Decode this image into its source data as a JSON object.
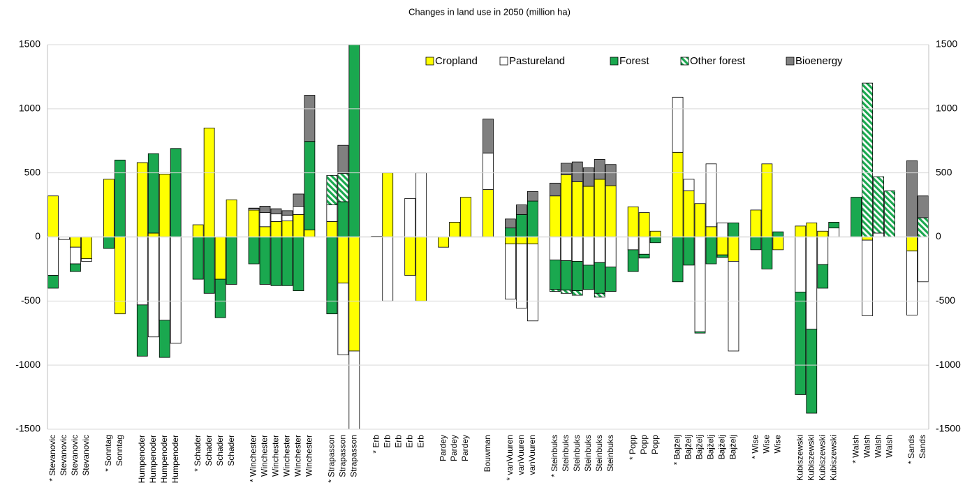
{
  "chart_data": {
    "type": "stacked-bar",
    "title": "Changes in land use in 2050 (million ha)",
    "categories": [
      "* Stevanovic",
      "Stevanovic",
      "Stevanovic",
      "Stevanovic",
      null,
      "* Sonntag",
      "Sonntag",
      null,
      "Humpenoder",
      "Humpenoder",
      "Humpenoder",
      "Humpenoder",
      null,
      "* Schader",
      "Schader",
      "Schader",
      "Schader",
      null,
      "* Winchester",
      "Winchester",
      "Winchester",
      "Winchester",
      "Winchester",
      "Winchester",
      null,
      "* Strapasson",
      "Strapasson",
      "Strapasson",
      null,
      "* Erb",
      "Erb",
      "Erb",
      "Erb",
      "Erb",
      null,
      "Pardey",
      "Pardey",
      "Pardey",
      null,
      "Bouwman",
      null,
      "* vanVuuren",
      "vanVuuren",
      "vanVuuren",
      null,
      "* Steinbuks",
      "Steinbuks",
      "Steinbuks",
      "Steinbuks",
      "Steinbuks",
      "Steinbuks",
      null,
      "* Popp",
      "Popp",
      "Popp",
      null,
      "* Bajželj",
      "Bajželj",
      "Bajželj",
      "Bajželj",
      "Bajželj",
      "Bajželj",
      null,
      "* Wise",
      "Wise",
      "Wise",
      null,
      "Kubiszewski",
      "Kubiszewski",
      "Kubiszewski",
      "Kubiszewski",
      null,
      "* Walsh",
      "Walsh",
      "Walsh",
      "Walsh",
      null,
      "* Sands",
      "Sands"
    ],
    "series": [
      {
        "name": "Cropland",
        "color": "#ffff00",
        "values": [
          320,
          null,
          -80,
          -170,
          null,
          450,
          -600,
          null,
          580,
          30,
          490,
          null,
          null,
          95,
          850,
          -330,
          290,
          null,
          210,
          80,
          120,
          125,
          175,
          55,
          null,
          120,
          -360,
          -890,
          null,
          5,
          500,
          null,
          -300,
          -500,
          null,
          -80,
          115,
          310,
          null,
          370,
          null,
          -55,
          -55,
          -55,
          null,
          320,
          485,
          430,
          395,
          450,
          400,
          null,
          235,
          190,
          45,
          null,
          660,
          360,
          260,
          80,
          -140,
          -190,
          null,
          210,
          570,
          -100,
          null,
          85,
          110,
          45,
          null,
          null,
          null,
          -25,
          null,
          null,
          null,
          -110,
          null
        ]
      },
      {
        "name": "Pastureland",
        "color": "#ffffff",
        "values": [
          -300,
          -20,
          -130,
          -20,
          null,
          null,
          null,
          null,
          -530,
          -780,
          -650,
          -830,
          null,
          null,
          null,
          null,
          null,
          null,
          10,
          110,
          60,
          45,
          65,
          null,
          null,
          130,
          -560,
          -700,
          null,
          null,
          -500,
          null,
          300,
          500,
          null,
          null,
          null,
          null,
          null,
          285,
          null,
          -430,
          -500,
          -600,
          null,
          -180,
          -185,
          -190,
          -220,
          -200,
          -235,
          null,
          -100,
          -135,
          null,
          null,
          430,
          90,
          -740,
          490,
          110,
          -700,
          null,
          null,
          null,
          null,
          null,
          -430,
          -720,
          -215,
          70,
          null,
          null,
          -590,
          30,
          null,
          null,
          -500,
          -350
        ]
      },
      {
        "name": "Forest",
        "color": "#1aa84f",
        "values": [
          -100,
          null,
          -60,
          null,
          null,
          -90,
          600,
          null,
          -400,
          620,
          -290,
          690,
          null,
          -330,
          -440,
          -300,
          -370,
          null,
          -210,
          -370,
          -380,
          -380,
          -420,
          690,
          null,
          -600,
          275,
          1600,
          null,
          null,
          null,
          null,
          null,
          null,
          null,
          null,
          null,
          null,
          null,
          null,
          null,
          70,
          175,
          280,
          null,
          -230,
          -230,
          -230,
          -190,
          -240,
          -190,
          null,
          -170,
          -30,
          -45,
          null,
          -350,
          -220,
          -10,
          -210,
          -20,
          110,
          null,
          -100,
          -250,
          40,
          null,
          -800,
          -655,
          -185,
          45,
          null,
          310,
          null,
          null,
          null,
          null,
          null,
          null
        ]
      },
      {
        "name": "Other forest",
        "color": "#1aa84f",
        "hatch": true,
        "values": [
          null,
          null,
          null,
          null,
          null,
          null,
          null,
          null,
          null,
          null,
          null,
          null,
          null,
          null,
          null,
          null,
          null,
          null,
          null,
          null,
          null,
          null,
          null,
          null,
          null,
          230,
          220,
          null,
          null,
          null,
          null,
          null,
          null,
          null,
          null,
          null,
          null,
          null,
          null,
          null,
          null,
          null,
          null,
          null,
          null,
          -15,
          -25,
          -35,
          null,
          -30,
          null,
          null,
          null,
          null,
          null,
          null,
          null,
          null,
          null,
          null,
          null,
          null,
          null,
          null,
          null,
          null,
          null,
          null,
          null,
          null,
          null,
          null,
          null,
          1200,
          440,
          360,
          null,
          null,
          150
        ]
      },
      {
        "name": "Bioenergy",
        "color": "#808080",
        "values": [
          null,
          null,
          null,
          null,
          null,
          null,
          null,
          null,
          null,
          null,
          null,
          null,
          null,
          null,
          null,
          null,
          null,
          null,
          5,
          50,
          40,
          35,
          95,
          360,
          null,
          null,
          220,
          null,
          null,
          null,
          null,
          null,
          null,
          null,
          null,
          null,
          null,
          null,
          null,
          265,
          null,
          70,
          75,
          75,
          null,
          100,
          90,
          155,
          145,
          155,
          165,
          null,
          null,
          null,
          null,
          null,
          null,
          null,
          null,
          null,
          null,
          null,
          null,
          null,
          null,
          null,
          null,
          null,
          null,
          null,
          null,
          null,
          null,
          null,
          null,
          null,
          null,
          595,
          170
        ]
      }
    ],
    "ylim": [
      -1500,
      1500
    ],
    "yticks": [
      -1500,
      -1000,
      -500,
      0,
      500,
      1000,
      1500
    ],
    "y2lim": [
      -1500,
      1500
    ],
    "y2ticks": [
      -1500,
      -1000,
      -500,
      0,
      500,
      1000,
      1500
    ],
    "grid": true
  }
}
